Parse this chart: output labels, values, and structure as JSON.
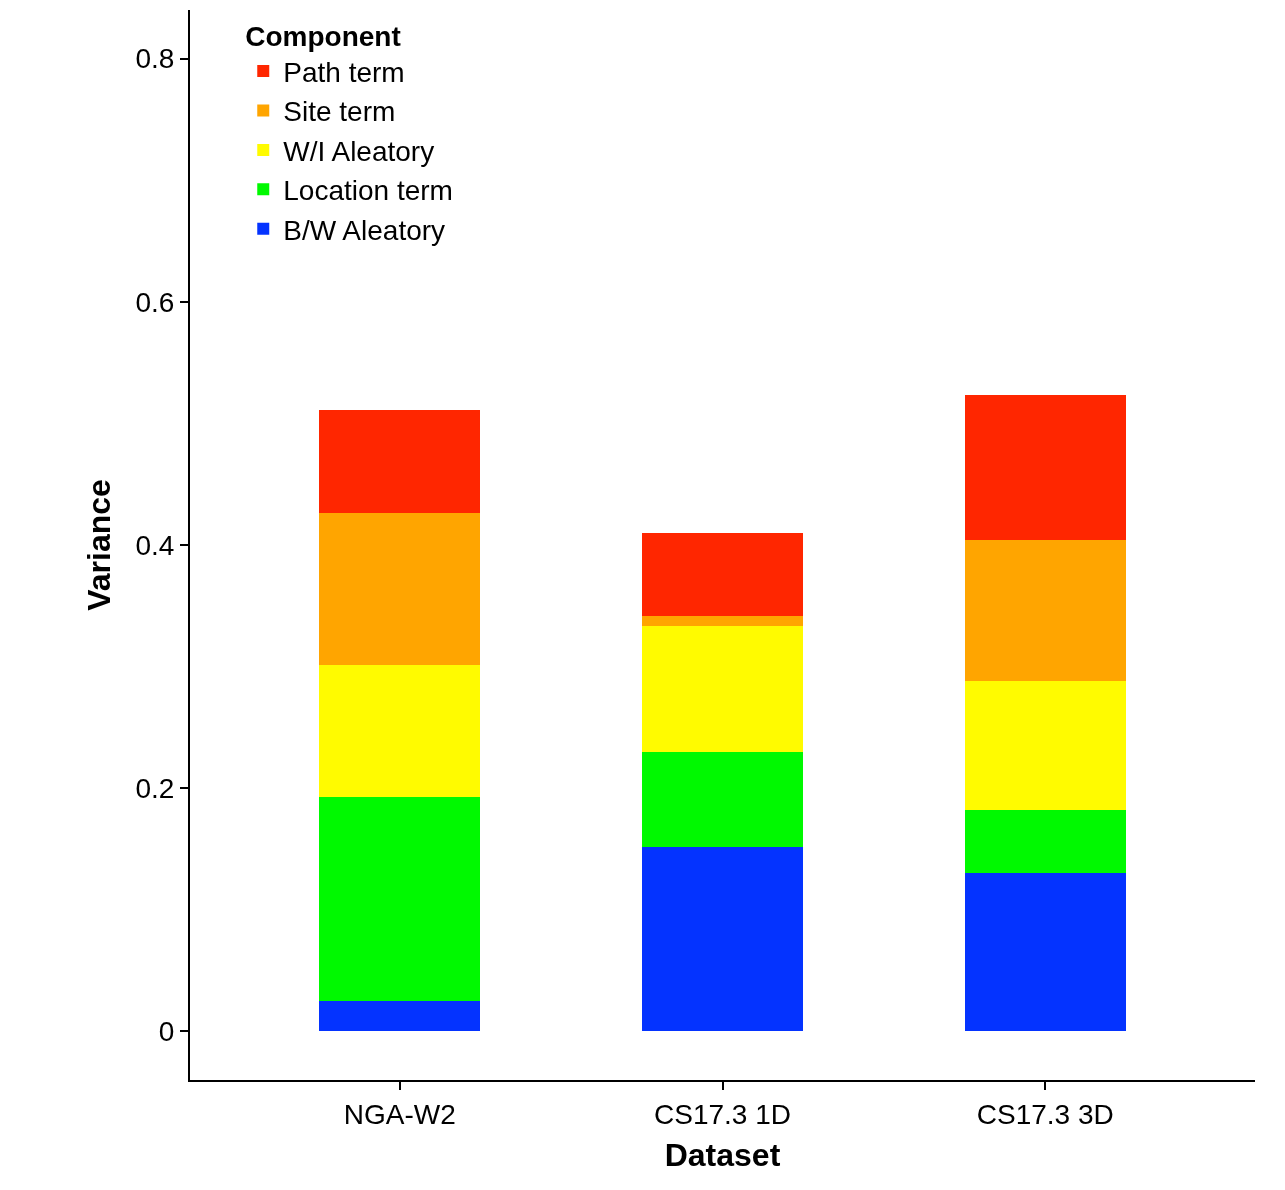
{
  "chart_data": {
    "type": "bar",
    "stacked": true,
    "xlabel": "Dataset",
    "ylabel": "Variance",
    "legend_title": "Component",
    "categories": [
      "NGA-W2",
      "CS17.3 1D",
      "CS17.3 3D"
    ],
    "series": [
      {
        "name": "B/W Aleatory",
        "color": "#0433ff",
        "values": [
          0.025,
          0.152,
          0.13
        ]
      },
      {
        "name": "Location term",
        "color": "#00f900",
        "values": [
          0.168,
          0.078,
          0.052
        ]
      },
      {
        "name": "W/I Aleatory",
        "color": "#fffb00",
        "values": [
          0.108,
          0.103,
          0.106
        ]
      },
      {
        "name": "Site term",
        "color": "#ffa500",
        "values": [
          0.125,
          0.009,
          0.116
        ]
      },
      {
        "name": "Path term",
        "color": "#ff2600",
        "values": [
          0.085,
          0.068,
          0.119
        ]
      }
    ],
    "ylim": [
      -0.04,
      0.84
    ],
    "yticks": [
      0,
      0.2,
      0.4,
      0.6,
      0.8
    ],
    "grid": false,
    "legend": "top left"
  }
}
